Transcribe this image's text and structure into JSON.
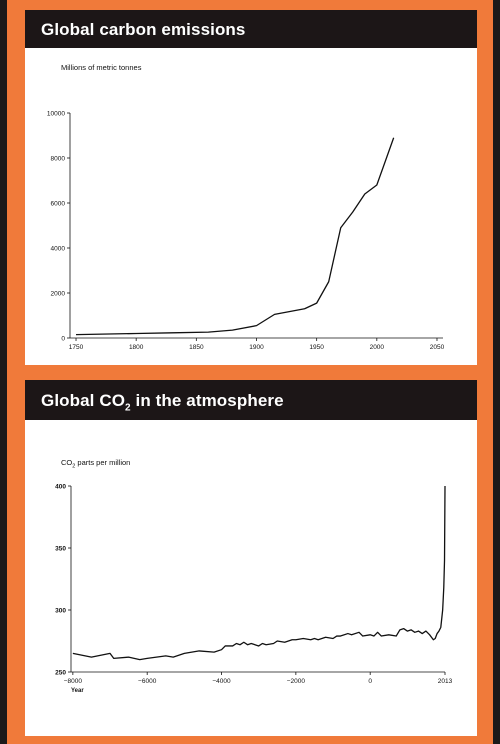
{
  "colors": {
    "frame": "#f07a3a",
    "header": "#1c1617",
    "line": "#111111"
  },
  "panel1": {
    "title": "Global carbon emissions",
    "unit": "Millions of metric tonnes"
  },
  "panel2": {
    "title_prefix": "Global CO",
    "title_sub": "2",
    "title_suffix": " in the atmosphere",
    "unit_prefix": "CO",
    "unit_sub": "2",
    "unit_suffix": " parts per million"
  },
  "chart_data": [
    {
      "type": "line",
      "title": "Global carbon emissions",
      "ylabel": "Millions of metric tonnes",
      "xlabel": "",
      "xlim": [
        1745,
        2055
      ],
      "ylim": [
        0,
        10000
      ],
      "xticks": [
        1750,
        1800,
        1850,
        1900,
        1950,
        2000,
        2050
      ],
      "yticks": [
        0,
        2000,
        4000,
        6000,
        8000,
        10000
      ],
      "grid": false,
      "series": [
        {
          "x": [
            1750,
            1800,
            1830,
            1860,
            1880,
            1900,
            1915,
            1925,
            1940,
            1950,
            1960,
            1970,
            1980,
            1990,
            2000,
            2014
          ],
          "y": [
            150,
            200,
            230,
            260,
            350,
            550,
            1050,
            1150,
            1300,
            1550,
            2500,
            4900,
            5600,
            6400,
            6800,
            8900
          ]
        }
      ]
    },
    {
      "type": "line",
      "title": "Global CO2 in the atmosphere",
      "ylabel": "CO2 parts per million",
      "xlabel": "Year",
      "xlim": [
        -8050,
        2013
      ],
      "ylim": [
        250,
        400
      ],
      "xticks": [
        -8000,
        -6000,
        -4000,
        -2000,
        0,
        2013
      ],
      "xtick_labels": [
        "−8000",
        "−6000",
        "−4000",
        "−2000",
        "0",
        "2013"
      ],
      "yticks": [
        250,
        300,
        350,
        400
      ],
      "grid": false,
      "series": [
        {
          "x": [
            -8000,
            -7500,
            -7000,
            -6900,
            -6500,
            -6200,
            -6000,
            -5500,
            -5300,
            -5000,
            -4600,
            -4200,
            -4000,
            -3900,
            -3700,
            -3600,
            -3500,
            -3400,
            -3300,
            -3200,
            -3000,
            -2900,
            -2800,
            -2600,
            -2500,
            -2300,
            -2100,
            -2000,
            -1800,
            -1600,
            -1500,
            -1400,
            -1200,
            -1000,
            -900,
            -800,
            -600,
            -500,
            -300,
            -200,
            0,
            100,
            200,
            300,
            500,
            700,
            800,
            900,
            1000,
            1100,
            1200,
            1300,
            1400,
            1500,
            1600,
            1700,
            1750,
            1800,
            1850,
            1900,
            1950,
            1980,
            2000,
            2013
          ],
          "y": [
            265,
            262,
            265,
            261,
            262,
            260,
            261,
            263,
            262,
            265,
            267,
            266,
            268,
            271,
            271,
            273,
            272,
            274,
            272,
            273,
            271,
            273,
            272,
            273,
            275,
            274,
            276,
            276,
            277,
            276,
            277,
            276,
            278,
            277,
            279,
            279,
            281,
            280,
            282,
            279,
            280,
            279,
            282,
            279,
            280,
            279,
            284,
            285,
            283,
            284,
            282,
            283,
            281,
            283,
            280,
            276,
            277,
            281,
            283,
            286,
            300,
            318,
            340,
            400
          ]
        }
      ]
    }
  ]
}
